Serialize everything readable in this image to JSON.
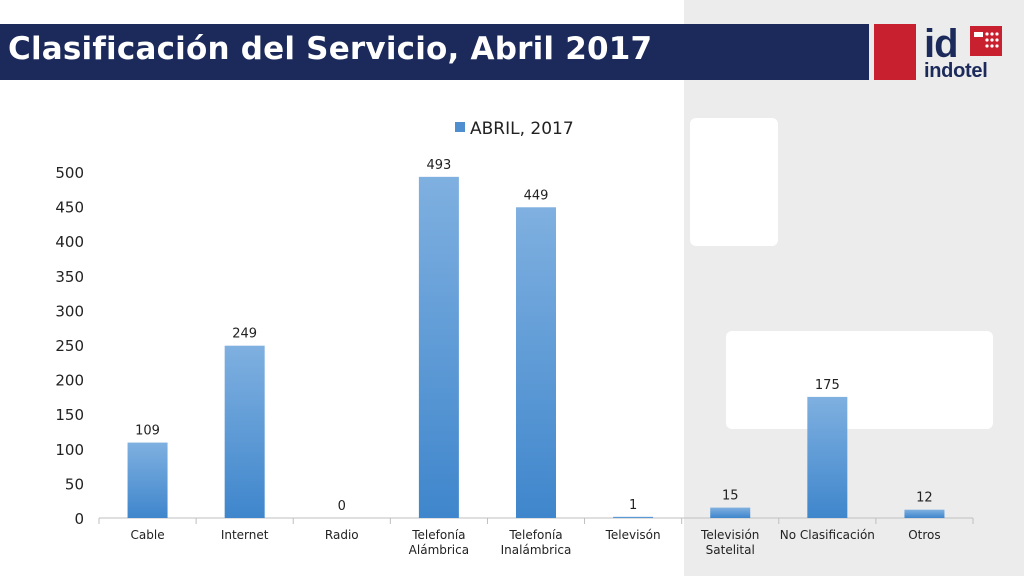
{
  "header": {
    "title": "Clasificación del Servicio, Abril 2017",
    "logo_text": "indotel",
    "logo_mark": "id"
  },
  "colors": {
    "title_bar": "#1b2a5a",
    "logo_red": "#c8202f",
    "bar_top": "#7fb0e0",
    "bar_bottom": "#3f86cc",
    "panel_gray": "#ececec"
  },
  "chart_data": {
    "type": "bar",
    "categories": [
      "Cable",
      "Internet",
      "Radio",
      "Telefonía Alámbrica",
      "Telefonía Inalámbrica",
      "Televisón",
      "Televisión Satelital",
      "No Clasificación",
      "Otros"
    ],
    "category_lines": [
      [
        "Cable"
      ],
      [
        "Internet"
      ],
      [
        "Radio"
      ],
      [
        "Telefonía",
        "Alámbrica"
      ],
      [
        "Telefonía",
        "Inalámbrica"
      ],
      [
        "Televisón"
      ],
      [
        "Televisión",
        "Satelital"
      ],
      [
        "No Clasificación"
      ],
      [
        "Otros"
      ]
    ],
    "series": [
      {
        "name": "ABRIL, 2017",
        "values": [
          109,
          249,
          0,
          493,
          449,
          1,
          15,
          175,
          12
        ]
      }
    ],
    "ylim": [
      0,
      500
    ],
    "yticks": [
      0,
      50,
      100,
      150,
      200,
      250,
      300,
      350,
      400,
      450,
      500
    ],
    "grid": false,
    "legend_position": "top-center",
    "data_labels": true
  }
}
